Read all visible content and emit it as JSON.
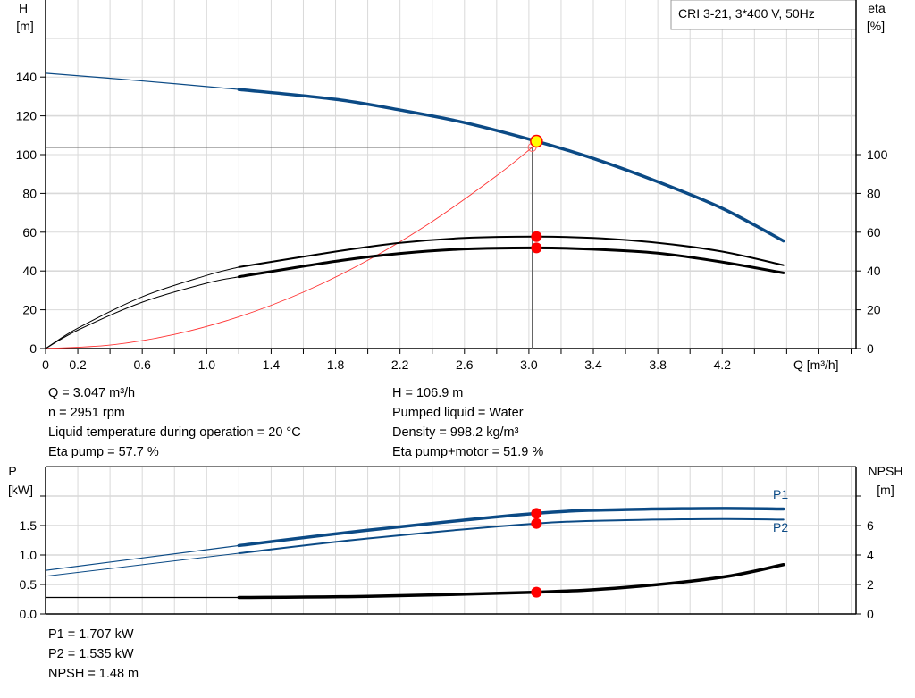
{
  "chart_data": [
    {
      "type": "line",
      "title": "CRI 3-21, 3*400 V, 50Hz",
      "xlabel": "Q [m³/h]",
      "ylabel_left": {
        "name": "H",
        "unit": "[m]"
      },
      "ylabel_right": {
        "name": "eta",
        "unit": "[%]"
      },
      "xlim": [
        0,
        5.0
      ],
      "ylim": [
        0,
        180
      ],
      "x_tick_labels": [
        "0",
        "0.2",
        "0.6",
        "1.0",
        "1.4",
        "1.8",
        "2.2",
        "2.6",
        "3.0",
        "3.4",
        "3.8",
        "4.2"
      ],
      "y_left_tick_labels": [
        "0",
        "20",
        "40",
        "60",
        "80",
        "100",
        "120",
        "140"
      ],
      "y_right_tick_labels": [
        "0",
        "20",
        "40",
        "60",
        "80",
        "100"
      ],
      "grid": true,
      "series": [
        {
          "key": "H",
          "color": "#0b4a85",
          "x": [
            0,
            0.6,
            1.2,
            1.8,
            2.2,
            2.6,
            3.047,
            3.4,
            3.8,
            4.2,
            4.58
          ],
          "y": [
            142,
            138,
            133.6,
            128.5,
            123,
            116.5,
            106.9,
            98,
            86,
            72.3,
            55.5
          ]
        },
        {
          "key": "eta_pump",
          "color": "#000000",
          "x": [
            0,
            0.2,
            0.6,
            1.0,
            1.2,
            1.8,
            2.2,
            2.6,
            3.047,
            3.4,
            3.8,
            4.2,
            4.58
          ],
          "y": [
            0,
            10.5,
            26.7,
            37.7,
            42,
            50,
            54.5,
            57,
            57.7,
            57,
            54.5,
            50,
            43
          ]
        },
        {
          "key": "eta_pump_motor",
          "color": "#000000",
          "x": [
            0,
            0.2,
            0.6,
            1.0,
            1.2,
            1.8,
            2.2,
            2.6,
            3.047,
            3.4,
            3.8,
            4.2,
            4.58
          ],
          "y": [
            0,
            9.5,
            23.9,
            33.7,
            37,
            45,
            49,
            51.3,
            51.9,
            51.2,
            49.2,
            44.6,
            39
          ]
        },
        {
          "key": "system_curve",
          "color": "#ff3333",
          "x": [
            0,
            0.4,
            0.8,
            1.2,
            1.6,
            2.0,
            2.4,
            2.8,
            3.02
          ],
          "y": [
            0,
            1.8,
            7.3,
            16.4,
            29.1,
            45.5,
            65.5,
            89.1,
            103.7
          ]
        }
      ],
      "duty_point": {
        "Q": 3.047,
        "H": 106.9,
        "eta_pump": 57.7,
        "eta_pump_motor": 51.9
      },
      "system_point": {
        "Q": 3.02,
        "H": 103.7
      }
    },
    {
      "type": "line",
      "xlim": [
        0,
        5.0
      ],
      "ylabel_left": {
        "name": "P",
        "unit": "[kW]"
      },
      "ylabel_right": {
        "name": "NPSH",
        "unit": "[m]"
      },
      "ylim": [
        0,
        2.5
      ],
      "ylim_right": [
        0,
        10
      ],
      "y_left_tick_labels": [
        "0.0",
        "0.5",
        "1.0",
        "1.5"
      ],
      "y_right_tick_labels": [
        "0",
        "2",
        "4",
        "6"
      ],
      "grid": true,
      "series": [
        {
          "key": "P1",
          "name": "P1",
          "color": "#0b4a85",
          "x": [
            0,
            1.2,
            2.0,
            3.047,
            3.6,
            4.2,
            4.58
          ],
          "y": [
            0.74,
            1.16,
            1.42,
            1.707,
            1.77,
            1.79,
            1.78
          ]
        },
        {
          "key": "P2",
          "name": "P2",
          "color": "#0b4a85",
          "x": [
            0,
            1.2,
            2.0,
            3.047,
            3.6,
            4.2,
            4.58
          ],
          "y": [
            0.64,
            1.03,
            1.28,
            1.535,
            1.59,
            1.61,
            1.6
          ]
        },
        {
          "key": "NPSH",
          "color": "#000000",
          "axis": "right",
          "x": [
            0,
            1.2,
            2.0,
            3.047,
            3.6,
            4.2,
            4.58
          ],
          "y": [
            1.12,
            1.12,
            1.2,
            1.48,
            1.8,
            2.5,
            3.35
          ]
        }
      ],
      "duty_point": {
        "Q": 3.047,
        "P1": 1.707,
        "P2": 1.535,
        "NPSH": 1.48
      }
    }
  ],
  "info_left": [
    "Q = 3.047 m³/h",
    "n = 2951 rpm",
    "Liquid temperature during operation = 20 °C",
    "Eta pump = 57.7 %"
  ],
  "info_right": [
    "H = 106.9 m",
    "Pumped liquid = Water",
    "Density = 998.2 kg/m³",
    "Eta pump+motor = 51.9 %"
  ],
  "info_bottom": [
    "P1 = 1.707 kW",
    "P2 = 1.535 kW",
    "NPSH = 1.48 m"
  ],
  "colors": {
    "curve_blue": "#0b4a85",
    "duty_point": "#ff0000",
    "duty_point_fill": "#ffff00",
    "grid": "#d9d9d9"
  }
}
